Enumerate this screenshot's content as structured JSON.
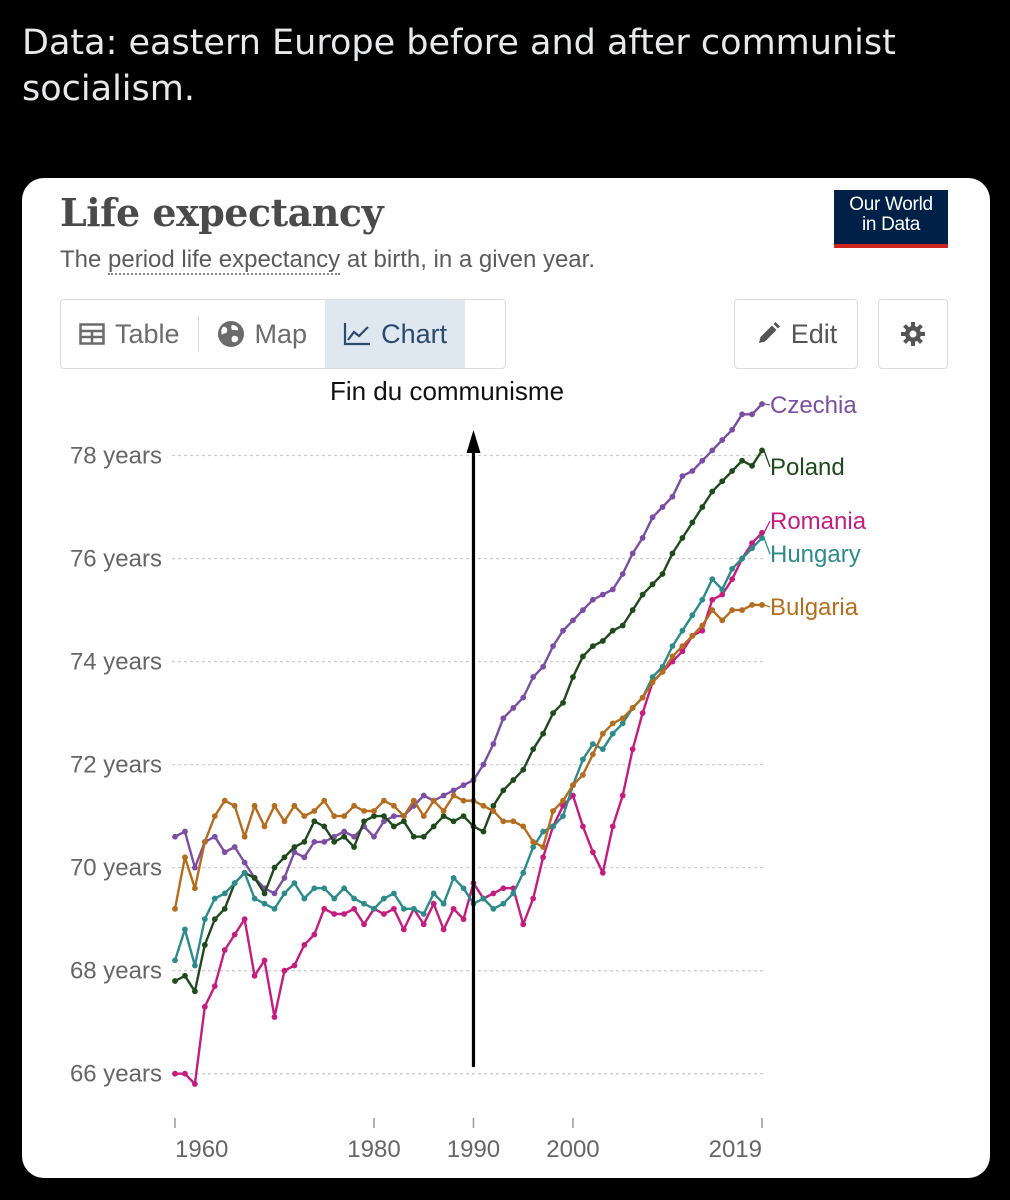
{
  "post": {
    "text": "Data: eastern Europe before and after communist socialism."
  },
  "card": {
    "title": "Life expectancy",
    "subtitle_pre": "The ",
    "subtitle_link": "period life expectancy",
    "subtitle_post": " at birth, in a given year.",
    "logo_line1": "Our World",
    "logo_line2": "in Data",
    "tabs": [
      {
        "label": "Table",
        "icon": "table-icon"
      },
      {
        "label": "Map",
        "icon": "globe-icon"
      },
      {
        "label": "Chart",
        "icon": "line-chart-icon",
        "active": true
      }
    ],
    "edit_label": "Edit",
    "settings_icon": "gear-icon"
  },
  "chart_data": {
    "type": "line",
    "title": "Life expectancy",
    "subtitle": "The period life expectancy at birth, in a given year.",
    "ylim": [
      65.8,
      79.0
    ],
    "xlim": [
      1960,
      2019
    ],
    "y_ticks": [
      66,
      68,
      70,
      72,
      74,
      76,
      78
    ],
    "y_tick_labels": [
      "66 years",
      "68 years",
      "70 years",
      "72 years",
      "74 years",
      "76 years",
      "78 years"
    ],
    "x_ticks": [
      1960,
      1980,
      1990,
      2000,
      2019
    ],
    "x_tick_labels": [
      "1960",
      "1980",
      "1990",
      "2000",
      "2019"
    ],
    "grid": true,
    "annotation": {
      "text": "Fin du communisme",
      "x": 1990
    },
    "x": [
      1960,
      1961,
      1962,
      1963,
      1964,
      1965,
      1966,
      1967,
      1968,
      1969,
      1970,
      1971,
      1972,
      1973,
      1974,
      1975,
      1976,
      1977,
      1978,
      1979,
      1980,
      1981,
      1982,
      1983,
      1984,
      1985,
      1986,
      1987,
      1988,
      1989,
      1990,
      1991,
      1992,
      1993,
      1994,
      1995,
      1996,
      1997,
      1998,
      1999,
      2000,
      2001,
      2002,
      2003,
      2004,
      2005,
      2006,
      2007,
      2008,
      2009,
      2010,
      2011,
      2012,
      2013,
      2014,
      2015,
      2016,
      2017,
      2018,
      2019
    ],
    "series": [
      {
        "name": "Czechia",
        "color": "#7c4ea3",
        "values": [
          70.6,
          70.7,
          70.0,
          70.5,
          70.6,
          70.3,
          70.4,
          70.1,
          69.8,
          69.6,
          69.5,
          69.8,
          70.3,
          70.2,
          70.5,
          70.5,
          70.6,
          70.7,
          70.6,
          70.8,
          70.6,
          70.9,
          71.0,
          71.0,
          71.2,
          71.4,
          71.3,
          71.4,
          71.5,
          71.6,
          71.7,
          72.0,
          72.4,
          72.9,
          73.1,
          73.3,
          73.7,
          73.9,
          74.3,
          74.6,
          74.8,
          75.0,
          75.2,
          75.3,
          75.4,
          75.7,
          76.1,
          76.4,
          76.8,
          77.0,
          77.2,
          77.6,
          77.7,
          77.9,
          78.1,
          78.3,
          78.5,
          78.8,
          78.8,
          79.0
        ]
      },
      {
        "name": "Poland",
        "color": "#1f4a1b",
        "values": [
          67.8,
          67.9,
          67.6,
          68.5,
          69.0,
          69.2,
          69.7,
          69.9,
          69.8,
          69.5,
          70.0,
          70.2,
          70.4,
          70.5,
          70.9,
          70.8,
          70.5,
          70.6,
          70.4,
          70.9,
          71.0,
          71.0,
          70.8,
          70.9,
          70.6,
          70.6,
          70.8,
          71.0,
          70.9,
          71.0,
          70.8,
          70.7,
          71.2,
          71.5,
          71.7,
          71.9,
          72.3,
          72.6,
          73.0,
          73.2,
          73.7,
          74.1,
          74.3,
          74.4,
          74.6,
          74.7,
          75.0,
          75.3,
          75.5,
          75.7,
          76.1,
          76.4,
          76.7,
          77.0,
          77.3,
          77.5,
          77.7,
          77.9,
          77.8,
          78.1
        ]
      },
      {
        "name": "Romania",
        "color": "#c41d7f",
        "values": [
          66.0,
          66.0,
          65.8,
          67.3,
          67.7,
          68.4,
          68.7,
          69.0,
          67.9,
          68.2,
          67.1,
          68.0,
          68.1,
          68.5,
          68.7,
          69.2,
          69.1,
          69.1,
          69.2,
          68.9,
          69.2,
          69.1,
          69.2,
          68.8,
          69.2,
          68.9,
          69.3,
          68.8,
          69.2,
          69.0,
          69.7,
          69.4,
          69.5,
          69.6,
          69.6,
          68.9,
          69.4,
          70.2,
          70.8,
          71.2,
          71.4,
          70.8,
          70.3,
          69.9,
          70.8,
          71.4,
          72.3,
          73.0,
          73.6,
          73.8,
          74.0,
          74.2,
          74.5,
          74.6,
          75.2,
          75.3,
          75.6,
          76.0,
          76.3,
          76.5
        ]
      },
      {
        "name": "Hungary",
        "color": "#2e8b8b",
        "values": [
          68.2,
          68.8,
          68.1,
          69.0,
          69.4,
          69.5,
          69.7,
          69.9,
          69.4,
          69.3,
          69.2,
          69.5,
          69.7,
          69.4,
          69.6,
          69.6,
          69.4,
          69.6,
          69.4,
          69.3,
          69.2,
          69.4,
          69.5,
          69.2,
          69.2,
          69.1,
          69.5,
          69.3,
          69.8,
          69.6,
          69.3,
          69.4,
          69.2,
          69.3,
          69.5,
          69.9,
          70.4,
          70.7,
          70.8,
          71.0,
          71.6,
          72.1,
          72.4,
          72.3,
          72.6,
          72.8,
          73.1,
          73.3,
          73.7,
          73.9,
          74.3,
          74.6,
          74.9,
          75.2,
          75.6,
          75.4,
          75.8,
          76.0,
          76.2,
          76.4
        ]
      },
      {
        "name": "Bulgaria",
        "color": "#b46d1e",
        "values": [
          69.2,
          70.2,
          69.6,
          70.5,
          71.0,
          71.3,
          71.2,
          70.6,
          71.2,
          70.8,
          71.2,
          70.9,
          71.2,
          71.0,
          71.1,
          71.3,
          71.0,
          71.0,
          71.2,
          71.1,
          71.1,
          71.3,
          71.2,
          71.0,
          71.3,
          71.0,
          71.3,
          71.1,
          71.4,
          71.3,
          71.3,
          71.2,
          71.1,
          70.9,
          70.9,
          70.8,
          70.5,
          70.4,
          71.1,
          71.3,
          71.6,
          71.8,
          72.2,
          72.6,
          72.8,
          72.9,
          73.1,
          73.3,
          73.6,
          73.8,
          74.1,
          74.3,
          74.5,
          74.7,
          75.0,
          74.8,
          75.0,
          75.0,
          75.1,
          75.1
        ]
      }
    ]
  }
}
